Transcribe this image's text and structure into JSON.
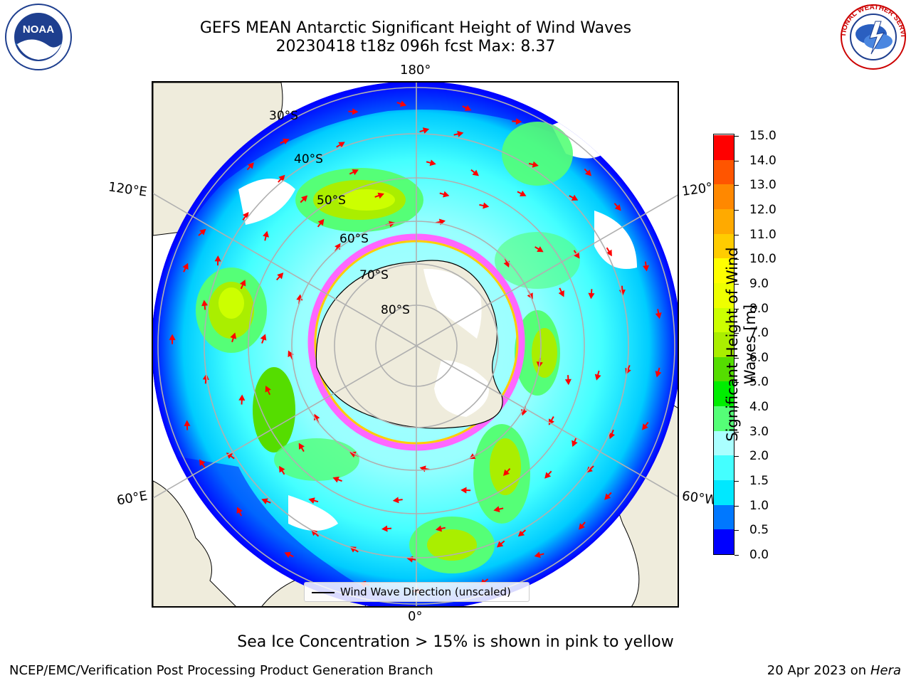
{
  "title": {
    "line1": "GEFS MEAN Antarctic Significant Height of Wind Waves",
    "line2": "20230418 t18z 096h fcst   Max: 8.37"
  },
  "logos": {
    "left": "NOAA",
    "right": "NATIONAL WEATHER SERVICE"
  },
  "map": {
    "projection": "south-polar-stereographic",
    "longitude_labels": {
      "top": "180°",
      "bottom": "0°",
      "upper_left": "120°E",
      "lower_left": "60°E",
      "upper_right": "120°",
      "lower_right": "60°W"
    },
    "latitude_labels": [
      "30°S",
      "40°S",
      "50°S",
      "60°S",
      "70°S",
      "80°S"
    ],
    "land_color": "#efecdc",
    "ice_edge_colors": [
      "#ff66ff",
      "#ffcc00"
    ],
    "arrow_color": "#ff0000",
    "legend": "Wind Wave Direction (unscaled)"
  },
  "colorbar": {
    "label": "Significant Height of Wind Waves [m]",
    "ticks": [
      "0.0",
      "0.5",
      "1.0",
      "1.5",
      "2.0",
      "3.0",
      "4.0",
      "5.0",
      "6.0",
      "7.0",
      "8.0",
      "9.0",
      "10.0",
      "11.0",
      "12.0",
      "13.0",
      "14.0",
      "15.0"
    ],
    "colors": [
      "#0000ff",
      "#0078ff",
      "#00e8ff",
      "#44ffff",
      "#aaffff",
      "#55ff77",
      "#00ee00",
      "#55dd00",
      "#aaee00",
      "#ccff00",
      "#eeff00",
      "#ffff00",
      "#ffcc00",
      "#ffaa00",
      "#ff8800",
      "#ff5500",
      "#ff0000"
    ]
  },
  "footer": {
    "note": "Sea Ice Concentration > 15% is shown in pink to yellow",
    "left": "NCEP/EMC/Verification Post Processing Product Generation Branch",
    "right_date": "20 Apr 2023 on ",
    "right_machine": "Hera"
  }
}
